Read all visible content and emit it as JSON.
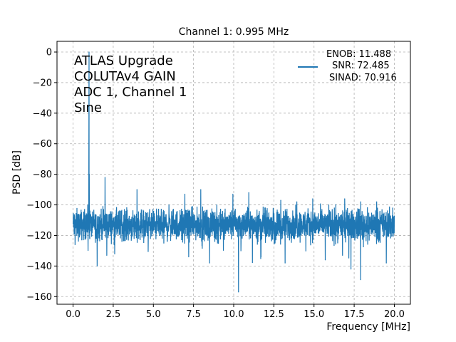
{
  "chart_data": {
    "type": "line",
    "title": "Channel 1: 0.995 MHz",
    "xlabel": "Frequency [MHz]",
    "ylabel": "PSD [dB]",
    "xlim": [
      -1.0,
      21.0
    ],
    "ylim": [
      -165,
      7
    ],
    "grid": true,
    "legend_placement": "top-right",
    "xticks": [
      0.0,
      2.5,
      5.0,
      7.5,
      10.0,
      12.5,
      15.0,
      17.5,
      20.0
    ],
    "xtick_labels": [
      "0.0",
      "2.5",
      "5.0",
      "7.5",
      "10.0",
      "12.5",
      "15.0",
      "17.5",
      "20.0"
    ],
    "yticks": [
      0,
      -20,
      -40,
      -60,
      -80,
      -100,
      -120,
      -140,
      -160
    ],
    "ytick_labels": [
      "0",
      "−20",
      "−40",
      "−60",
      "−80",
      "−100",
      "−120",
      "−140",
      "−160"
    ],
    "annotation_lines": [
      "ATLAS Upgrade",
      "COLUTAv4 GAIN",
      "ADC 1, Channel 1",
      "Sine"
    ],
    "legend_lines": [
      "ENOB: 11.488",
      "SNR: 72.485",
      "SINAD: 70.916"
    ],
    "color": "#1f77b4",
    "noise_floor_db": -113,
    "noise_spread_db": 7,
    "x_range": [
      0.0,
      20.0
    ],
    "points": [
      {
        "x": 0.995,
        "y": 0
      },
      {
        "x": 0.98,
        "y": -80
      },
      {
        "x": 1.01,
        "y": -80
      },
      {
        "x": 1.99,
        "y": -82
      },
      {
        "x": 2.98,
        "y": -104
      },
      {
        "x": 3.2,
        "y": -103
      },
      {
        "x": 3.98,
        "y": -90
      },
      {
        "x": 4.97,
        "y": -103
      },
      {
        "x": 5.97,
        "y": -100
      },
      {
        "x": 6.96,
        "y": -93
      },
      {
        "x": 7.95,
        "y": -90
      },
      {
        "x": 8.95,
        "y": -100
      },
      {
        "x": 9.95,
        "y": -93
      },
      {
        "x": 10.94,
        "y": -92
      },
      {
        "x": 11.94,
        "y": -102
      },
      {
        "x": 12.93,
        "y": -97
      },
      {
        "x": 13.93,
        "y": -98
      },
      {
        "x": 14.92,
        "y": -96
      },
      {
        "x": 15.92,
        "y": -100
      },
      {
        "x": 16.91,
        "y": -96
      },
      {
        "x": 17.91,
        "y": -98
      },
      {
        "x": 18.9,
        "y": -98
      },
      {
        "x": 19.9,
        "y": -102
      },
      {
        "x": 1.5,
        "y": -140
      },
      {
        "x": 2.1,
        "y": -133
      },
      {
        "x": 7.2,
        "y": -134
      },
      {
        "x": 8.5,
        "y": -138
      },
      {
        "x": 10.3,
        "y": -157
      },
      {
        "x": 11.7,
        "y": -134
      },
      {
        "x": 13.2,
        "y": -138
      },
      {
        "x": 15.7,
        "y": -136
      },
      {
        "x": 17.3,
        "y": -142
      },
      {
        "x": 17.9,
        "y": -149
      },
      {
        "x": 19.5,
        "y": -138
      }
    ]
  }
}
